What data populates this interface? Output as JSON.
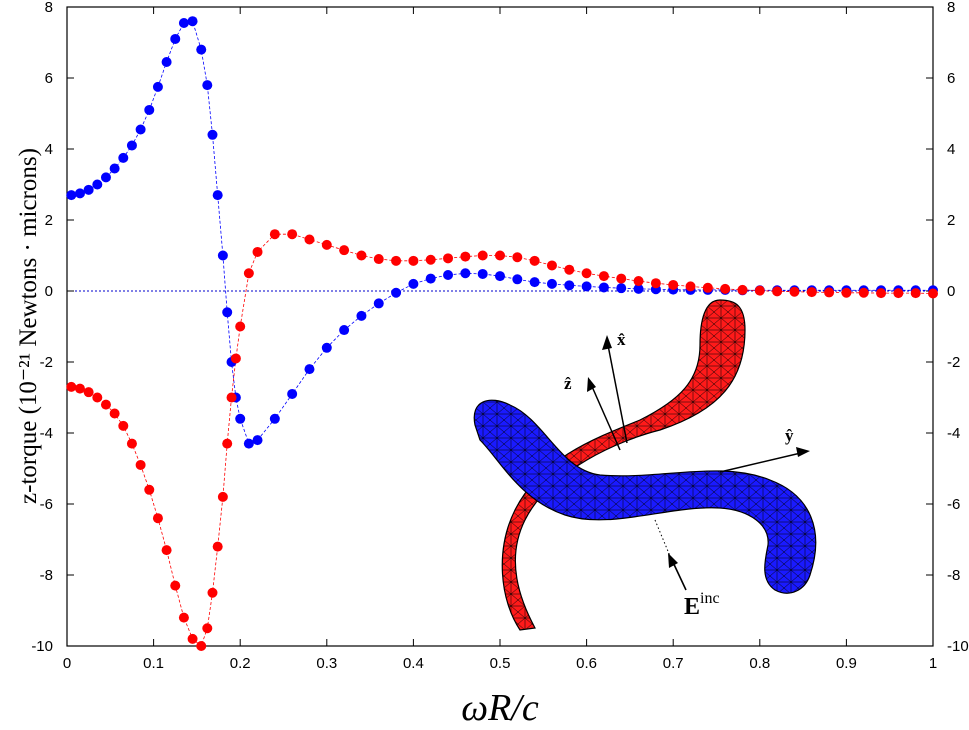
{
  "chart_data": {
    "type": "scatter",
    "xlabel": "ωR/c",
    "ylabel": "z-torque (10⁻²¹ Newtons · microns)",
    "xlim": [
      0,
      1
    ],
    "ylim": [
      -10,
      8
    ],
    "x_ticks": [
      "0",
      "0.1",
      "0.2",
      "0.3",
      "0.4",
      "0.5",
      "0.6",
      "0.7",
      "0.8",
      "0.9",
      "1"
    ],
    "y_ticks": [
      "-10",
      "-8",
      "-6",
      "-4",
      "-2",
      "0",
      "2",
      "4",
      "6",
      "8"
    ],
    "zero_line": true,
    "grid": false,
    "series": [
      {
        "color": "#0000ff",
        "x": [
          0.005,
          0.015,
          0.025,
          0.035,
          0.045,
          0.055,
          0.065,
          0.075,
          0.085,
          0.095,
          0.105,
          0.115,
          0.125,
          0.135,
          0.145,
          0.155,
          0.162,
          0.168,
          0.174,
          0.18,
          0.185,
          0.19,
          0.195,
          0.2,
          0.21,
          0.22,
          0.24,
          0.26,
          0.28,
          0.3,
          0.32,
          0.34,
          0.36,
          0.38,
          0.4,
          0.42,
          0.44,
          0.46,
          0.48,
          0.5,
          0.52,
          0.54,
          0.56,
          0.58,
          0.6,
          0.62,
          0.64,
          0.66,
          0.68,
          0.7,
          0.72,
          0.74,
          0.76,
          0.78,
          0.8,
          0.82,
          0.84,
          0.86,
          0.88,
          0.9,
          0.92,
          0.94,
          0.96,
          0.98,
          1.0
        ],
        "values": [
          2.7,
          2.75,
          2.85,
          3.0,
          3.2,
          3.45,
          3.75,
          4.1,
          4.55,
          5.1,
          5.75,
          6.45,
          7.1,
          7.55,
          7.6,
          6.8,
          5.8,
          4.4,
          2.7,
          1.0,
          -0.6,
          -2.0,
          -3.0,
          -3.6,
          -4.3,
          -4.2,
          -3.6,
          -2.9,
          -2.2,
          -1.6,
          -1.1,
          -0.7,
          -0.35,
          -0.05,
          0.2,
          0.35,
          0.45,
          0.5,
          0.48,
          0.42,
          0.33,
          0.25,
          0.2,
          0.16,
          0.13,
          0.1,
          0.08,
          0.06,
          0.05,
          0.04,
          0.03,
          0.03,
          0.03,
          0.02,
          0.02,
          0.02,
          0.02,
          0.02,
          0.02,
          0.02,
          0.02,
          0.02,
          0.02,
          0.02,
          0.02
        ]
      },
      {
        "color": "#ff0000",
        "x": [
          0.005,
          0.015,
          0.025,
          0.035,
          0.045,
          0.055,
          0.065,
          0.075,
          0.085,
          0.095,
          0.105,
          0.115,
          0.125,
          0.135,
          0.145,
          0.155,
          0.162,
          0.168,
          0.174,
          0.18,
          0.185,
          0.19,
          0.195,
          0.2,
          0.21,
          0.22,
          0.24,
          0.26,
          0.28,
          0.3,
          0.32,
          0.34,
          0.36,
          0.38,
          0.4,
          0.42,
          0.44,
          0.46,
          0.48,
          0.5,
          0.52,
          0.54,
          0.56,
          0.58,
          0.6,
          0.62,
          0.64,
          0.66,
          0.68,
          0.7,
          0.72,
          0.74,
          0.76,
          0.78,
          0.8,
          0.82,
          0.84,
          0.86,
          0.88,
          0.9,
          0.92,
          0.94,
          0.96,
          0.98,
          1.0
        ],
        "values": [
          -2.7,
          -2.75,
          -2.85,
          -3.0,
          -3.2,
          -3.45,
          -3.8,
          -4.3,
          -4.9,
          -5.6,
          -6.4,
          -7.3,
          -8.3,
          -9.2,
          -9.8,
          -10.0,
          -9.5,
          -8.5,
          -7.2,
          -5.8,
          -4.3,
          -3.0,
          -1.9,
          -1.0,
          0.5,
          1.1,
          1.6,
          1.6,
          1.45,
          1.3,
          1.15,
          1.0,
          0.9,
          0.85,
          0.85,
          0.88,
          0.92,
          0.97,
          1.0,
          1.0,
          0.95,
          0.85,
          0.72,
          0.6,
          0.5,
          0.42,
          0.35,
          0.28,
          0.22,
          0.17,
          0.13,
          0.09,
          0.06,
          0.03,
          0.01,
          -0.01,
          -0.02,
          -0.03,
          -0.04,
          -0.05,
          -0.05,
          -0.06,
          -0.06,
          -0.06,
          -0.07
        ]
      }
    ],
    "inset_labels": {
      "x_hat": "x̂",
      "z_hat": "ẑ",
      "y_hat": "ŷ",
      "e_inc": "E",
      "e_inc_sup": "inc"
    }
  }
}
